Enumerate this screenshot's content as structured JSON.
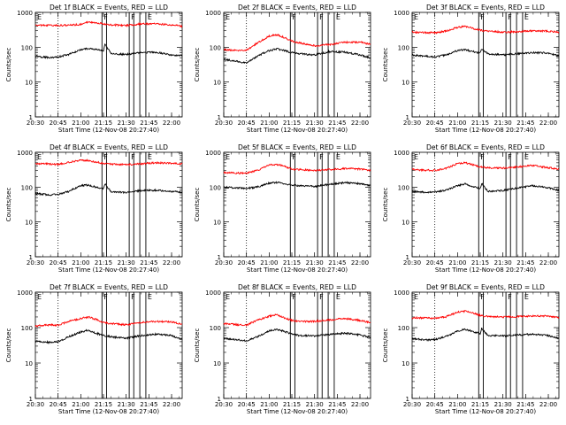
{
  "figure": {
    "x_ticks": [
      "20:30",
      "20:45",
      "21:00",
      "21:15",
      "21:30",
      "21:45",
      "22:00"
    ],
    "y_ticks": [
      "1",
      "10",
      "100",
      "1000"
    ],
    "ylabel": "Counts/sec",
    "xlabel": "Start Time (12-Nov-08 20:27:40)",
    "marker_labels": [
      "E",
      "F",
      "F",
      "E"
    ]
  },
  "colors": {
    "events": "#000000",
    "lld": "#ff0000"
  },
  "chart_data": [
    {
      "type": "line",
      "title": "Det 1f BLACK = Events, RED = LLD",
      "ylabel": "Counts/sec",
      "xlabel": "Start Time (12-Nov-08 20:27:40)",
      "ylim": [
        1,
        1000
      ],
      "y_scale": "log",
      "x_range": [
        "20:30",
        "22:07"
      ],
      "series": [
        {
          "color": "red",
          "x": [
            "20:30",
            "20:45",
            "21:00",
            "21:05",
            "21:15",
            "21:20",
            "21:30",
            "21:40",
            "21:50",
            "22:00",
            "22:07"
          ],
          "values": [
            430,
            420,
            450,
            530,
            470,
            440,
            420,
            470,
            470,
            440,
            400
          ]
        },
        {
          "color": "black",
          "x": [
            "20:30",
            "20:40",
            "20:45",
            "20:52",
            "21:00",
            "21:05",
            "21:10",
            "21:15",
            "21:16",
            "21:20",
            "21:30",
            "21:40",
            "21:50",
            "22:00",
            "22:07"
          ],
          "values": [
            55,
            50,
            52,
            62,
            85,
            92,
            85,
            80,
            120,
            65,
            62,
            70,
            72,
            60,
            58
          ]
        }
      ],
      "markers": [
        "20:45",
        "21:14",
        "21:17",
        "21:32",
        "21:35",
        "21:39",
        "21:43"
      ]
    },
    {
      "type": "line",
      "title": "Det 2f BLACK = Events, RED = LLD",
      "ylabel": "Counts/sec",
      "xlabel": "Start Time (12-Nov-08 20:27:40)",
      "ylim": [
        1,
        1000
      ],
      "y_scale": "log",
      "x_range": [
        "20:30",
        "22:07"
      ],
      "series": [
        {
          "color": "red",
          "x": [
            "20:30",
            "20:40",
            "20:45",
            "20:52",
            "21:00",
            "21:05",
            "21:10",
            "21:15",
            "21:20",
            "21:30",
            "21:40",
            "21:50",
            "22:00",
            "22:07"
          ],
          "values": [
            85,
            80,
            82,
            130,
            210,
            230,
            190,
            150,
            135,
            110,
            120,
            140,
            140,
            120
          ]
        },
        {
          "color": "black",
          "x": [
            "20:30",
            "20:40",
            "20:45",
            "20:52",
            "21:00",
            "21:05",
            "21:10",
            "21:15",
            "21:20",
            "21:30",
            "21:40",
            "21:50",
            "22:00",
            "22:07"
          ],
          "values": [
            45,
            38,
            35,
            55,
            80,
            90,
            80,
            70,
            65,
            60,
            75,
            72,
            60,
            50
          ]
        }
      ],
      "markers": [
        "20:45",
        "21:14",
        "21:17",
        "21:32",
        "21:35",
        "21:39",
        "21:43"
      ]
    },
    {
      "type": "line",
      "title": "Det 3f BLACK = Events, RED = LLD",
      "ylabel": "Counts/sec",
      "xlabel": "Start Time (12-Nov-08 20:27:40)",
      "ylim": [
        1,
        1000
      ],
      "y_scale": "log",
      "x_range": [
        "20:30",
        "22:07"
      ],
      "series": [
        {
          "color": "red",
          "x": [
            "20:30",
            "20:45",
            "20:52",
            "21:00",
            "21:05",
            "21:10",
            "21:15",
            "21:20",
            "21:30",
            "21:40",
            "21:50",
            "22:00",
            "22:07"
          ],
          "values": [
            270,
            260,
            290,
            370,
            400,
            350,
            310,
            290,
            270,
            280,
            300,
            290,
            270
          ]
        },
        {
          "color": "black",
          "x": [
            "20:30",
            "20:40",
            "20:45",
            "20:52",
            "21:00",
            "21:05",
            "21:10",
            "21:15",
            "21:16",
            "21:20",
            "21:30",
            "21:40",
            "21:50",
            "22:00",
            "22:07"
          ],
          "values": [
            60,
            55,
            52,
            60,
            80,
            85,
            75,
            68,
            90,
            65,
            60,
            65,
            70,
            68,
            55
          ]
        }
      ],
      "markers": [
        "20:45",
        "21:14",
        "21:17",
        "21:32",
        "21:35",
        "21:39",
        "21:43"
      ]
    },
    {
      "type": "line",
      "title": "Det 4f BLACK = Events, RED = LLD",
      "ylabel": "Counts/sec",
      "xlabel": "Start Time (12-Nov-08 20:27:40)",
      "ylim": [
        1,
        1000
      ],
      "y_scale": "log",
      "x_range": [
        "20:30",
        "22:07"
      ],
      "series": [
        {
          "color": "red",
          "x": [
            "20:30",
            "20:45",
            "20:52",
            "21:00",
            "21:05",
            "21:10",
            "21:15",
            "21:20",
            "21:30",
            "21:40",
            "21:50",
            "22:00",
            "22:07"
          ],
          "values": [
            480,
            450,
            520,
            590,
            580,
            530,
            480,
            460,
            440,
            470,
            500,
            480,
            470
          ]
        },
        {
          "color": "black",
          "x": [
            "20:30",
            "20:40",
            "20:45",
            "20:52",
            "21:00",
            "21:05",
            "21:10",
            "21:15",
            "21:16",
            "21:20",
            "21:30",
            "21:40",
            "21:50",
            "22:00",
            "22:07"
          ],
          "values": [
            65,
            60,
            62,
            75,
            110,
            115,
            100,
            90,
            125,
            72,
            70,
            80,
            82,
            75,
            70
          ]
        }
      ],
      "markers": [
        "20:45",
        "21:14",
        "21:17",
        "21:32",
        "21:35",
        "21:39",
        "21:43"
      ]
    },
    {
      "type": "line",
      "title": "Det 5f BLACK = Events, RED = LLD",
      "ylabel": "Counts/sec",
      "xlabel": "Start Time (12-Nov-08 20:27:40)",
      "ylim": [
        1,
        1000
      ],
      "y_scale": "log",
      "x_range": [
        "20:30",
        "22:07"
      ],
      "series": [
        {
          "color": "red",
          "x": [
            "20:30",
            "20:45",
            "20:52",
            "21:00",
            "21:05",
            "21:10",
            "21:15",
            "21:20",
            "21:30",
            "21:40",
            "21:50",
            "22:00",
            "22:07"
          ],
          "values": [
            260,
            250,
            300,
            430,
            450,
            400,
            330,
            320,
            300,
            320,
            340,
            330,
            300
          ]
        },
        {
          "color": "black",
          "x": [
            "20:30",
            "20:40",
            "20:45",
            "20:52",
            "21:00",
            "21:05",
            "21:10",
            "21:15",
            "21:20",
            "21:30",
            "21:40",
            "21:50",
            "22:00",
            "22:07"
          ],
          "values": [
            100,
            95,
            92,
            100,
            130,
            135,
            125,
            115,
            110,
            105,
            120,
            135,
            125,
            110
          ]
        }
      ],
      "markers": [
        "20:45",
        "21:14",
        "21:17",
        "21:32",
        "21:35",
        "21:39",
        "21:43"
      ]
    },
    {
      "type": "line",
      "title": "Det 6f BLACK = Events, RED = LLD",
      "ylabel": "Counts/sec",
      "xlabel": "Start Time (12-Nov-08 20:27:40)",
      "ylim": [
        1,
        1000
      ],
      "y_scale": "log",
      "x_range": [
        "20:30",
        "22:07"
      ],
      "series": [
        {
          "color": "red",
          "x": [
            "20:30",
            "20:45",
            "20:52",
            "21:00",
            "21:05",
            "21:10",
            "21:15",
            "21:20",
            "21:30",
            "21:40",
            "21:50",
            "22:00",
            "22:07"
          ],
          "values": [
            320,
            300,
            340,
            470,
            500,
            440,
            380,
            360,
            350,
            380,
            420,
            360,
            330
          ]
        },
        {
          "color": "black",
          "x": [
            "20:30",
            "20:40",
            "20:45",
            "20:52",
            "21:00",
            "21:05",
            "21:10",
            "21:15",
            "21:16",
            "21:20",
            "21:30",
            "21:40",
            "21:50",
            "22:00",
            "22:07"
          ],
          "values": [
            75,
            70,
            72,
            80,
            110,
            125,
            105,
            90,
            130,
            75,
            80,
            95,
            110,
            95,
            80
          ]
        }
      ],
      "markers": [
        "20:45",
        "21:14",
        "21:17",
        "21:32",
        "21:35",
        "21:39",
        "21:43"
      ]
    },
    {
      "type": "line",
      "title": "Det 7f BLACK = Events, RED = LLD",
      "ylabel": "Counts/sec",
      "xlabel": "Start Time (12-Nov-08 20:27:40)",
      "ylim": [
        1,
        1000
      ],
      "y_scale": "log",
      "x_range": [
        "20:30",
        "22:07"
      ],
      "series": [
        {
          "color": "red",
          "x": [
            "20:30",
            "20:40",
            "20:45",
            "20:52",
            "21:00",
            "21:05",
            "21:10",
            "21:15",
            "21:20",
            "21:30",
            "21:40",
            "21:50",
            "22:00",
            "22:07"
          ],
          "values": [
            110,
            120,
            115,
            150,
            180,
            200,
            170,
            140,
            130,
            120,
            140,
            150,
            145,
            125
          ]
        },
        {
          "color": "black",
          "x": [
            "20:30",
            "20:40",
            "20:45",
            "20:52",
            "21:00",
            "21:05",
            "21:10",
            "21:15",
            "21:20",
            "21:30",
            "21:40",
            "21:50",
            "22:00",
            "22:07"
          ],
          "values": [
            42,
            38,
            40,
            55,
            75,
            85,
            70,
            60,
            55,
            50,
            60,
            65,
            60,
            45
          ]
        }
      ],
      "markers": [
        "20:45",
        "21:14",
        "21:17",
        "21:32",
        "21:35",
        "21:39",
        "21:43"
      ]
    },
    {
      "type": "line",
      "title": "Det 8f BLACK = Events, RED = LLD",
      "ylabel": "Counts/sec",
      "xlabel": "Start Time (12-Nov-08 20:27:40)",
      "ylim": [
        1,
        1000
      ],
      "y_scale": "log",
      "x_range": [
        "20:30",
        "22:07"
      ],
      "series": [
        {
          "color": "red",
          "x": [
            "20:30",
            "20:40",
            "20:45",
            "20:52",
            "21:00",
            "21:05",
            "21:10",
            "21:15",
            "21:20",
            "21:30",
            "21:40",
            "21:50",
            "22:00",
            "22:07"
          ],
          "values": [
            130,
            120,
            118,
            160,
            210,
            230,
            190,
            160,
            150,
            150,
            165,
            180,
            160,
            140
          ]
        },
        {
          "color": "black",
          "x": [
            "20:30",
            "20:40",
            "20:45",
            "20:52",
            "21:00",
            "21:05",
            "21:10",
            "21:15",
            "21:20",
            "21:30",
            "21:40",
            "21:50",
            "22:00",
            "22:07"
          ],
          "values": [
            50,
            45,
            42,
            55,
            80,
            90,
            78,
            65,
            60,
            58,
            65,
            70,
            62,
            52
          ]
        }
      ],
      "markers": [
        "20:45",
        "21:14",
        "21:17",
        "21:32",
        "21:35",
        "21:39",
        "21:43"
      ]
    },
    {
      "type": "line",
      "title": "Det 9f BLACK = Events, RED = LLD",
      "ylabel": "Counts/sec",
      "xlabel": "Start Time (12-Nov-08 20:27:40)",
      "ylim": [
        1,
        1000
      ],
      "y_scale": "log",
      "x_range": [
        "20:30",
        "22:07"
      ],
      "series": [
        {
          "color": "red",
          "x": [
            "20:30",
            "20:45",
            "20:52",
            "21:00",
            "21:05",
            "21:10",
            "21:15",
            "21:20",
            "21:30",
            "21:40",
            "21:50",
            "22:00",
            "22:07"
          ],
          "values": [
            190,
            185,
            200,
            270,
            290,
            260,
            220,
            205,
            200,
            205,
            215,
            210,
            195
          ]
        },
        {
          "color": "black",
          "x": [
            "20:30",
            "20:40",
            "20:45",
            "20:52",
            "21:00",
            "21:05",
            "21:10",
            "21:15",
            "21:16",
            "21:20",
            "21:30",
            "21:40",
            "21:50",
            "22:00",
            "22:07"
          ],
          "values": [
            48,
            45,
            46,
            55,
            80,
            90,
            78,
            68,
            95,
            60,
            58,
            62,
            65,
            60,
            50
          ]
        }
      ],
      "markers": [
        "20:45",
        "21:14",
        "21:17",
        "21:32",
        "21:35",
        "21:39",
        "21:43"
      ]
    }
  ]
}
